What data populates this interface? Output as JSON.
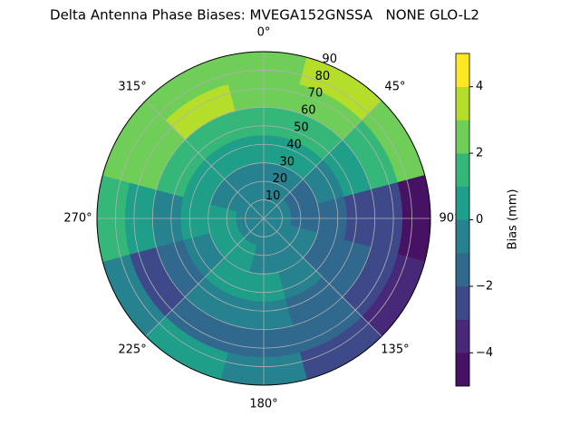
{
  "chart_data": {
    "type": "polar-contour",
    "title": "Delta Antenna Phase Biases: MVEGA152GNSSA   NONE GLO-L2",
    "azimuth": [
      0,
      30,
      60,
      90,
      120,
      150,
      180,
      210,
      240,
      270,
      300,
      330
    ],
    "zenith_edges": [
      0,
      15,
      30,
      45,
      60,
      75,
      90
    ],
    "values": [
      [
        -0.5,
        -0.5,
        0.5,
        1.5,
        2.5,
        2.5
      ],
      [
        -0.5,
        -0.5,
        0.5,
        1.5,
        2.5,
        3.5
      ],
      [
        -0.5,
        -1.5,
        -0.5,
        0.5,
        1.5,
        2.5
      ],
      [
        -0.5,
        -1.5,
        -1.5,
        -2.5,
        -2.5,
        -4.5
      ],
      [
        -0.5,
        -0.5,
        -1.5,
        -1.5,
        -2.5,
        -3.5
      ],
      [
        -0.5,
        -0.5,
        -0.5,
        -1.5,
        -1.5,
        -2.5
      ],
      [
        -0.5,
        -0.5,
        0.5,
        -0.5,
        -1.5,
        -0.5
      ],
      [
        -0.5,
        0.5,
        0.5,
        -0.5,
        -1.5,
        0.5
      ],
      [
        -0.5,
        0.5,
        -0.5,
        -1.5,
        -2.5,
        -0.5
      ],
      [
        -0.5,
        0.5,
        0.5,
        -0.5,
        0.5,
        1.5
      ],
      [
        -0.5,
        -0.5,
        0.5,
        1.5,
        2.5,
        2.5
      ],
      [
        -0.5,
        -0.5,
        0.5,
        1.5,
        3.5,
        2.5
      ]
    ],
    "rlim": [
      0,
      90
    ],
    "rticks": [
      10,
      20,
      30,
      40,
      50,
      60,
      70,
      80,
      90
    ],
    "thetaticks": [
      {
        "value": 0,
        "label": "0°"
      },
      {
        "value": 45,
        "label": "45°"
      },
      {
        "value": 90,
        "label": "90°"
      },
      {
        "value": 135,
        "label": "135°"
      },
      {
        "value": 180,
        "label": "180°"
      },
      {
        "value": 225,
        "label": "225°"
      },
      {
        "value": 270,
        "label": "270°"
      },
      {
        "value": 315,
        "label": "315°"
      }
    ],
    "levels": [
      -5,
      -4,
      -3,
      -2,
      -1,
      0,
      1,
      2,
      3,
      4,
      5
    ],
    "colors": [
      "#471164",
      "#482878",
      "#3e4989",
      "#31688e",
      "#26828e",
      "#1f9e89",
      "#35b779",
      "#6ece58",
      "#b5de2b",
      "#fde725"
    ],
    "colorbar_label": "Bias (mm)",
    "colorbar_ticks": [
      {
        "value": -4,
        "label": "−4"
      },
      {
        "value": -2,
        "label": "−2"
      },
      0,
      2,
      4
    ],
    "grid": true
  }
}
